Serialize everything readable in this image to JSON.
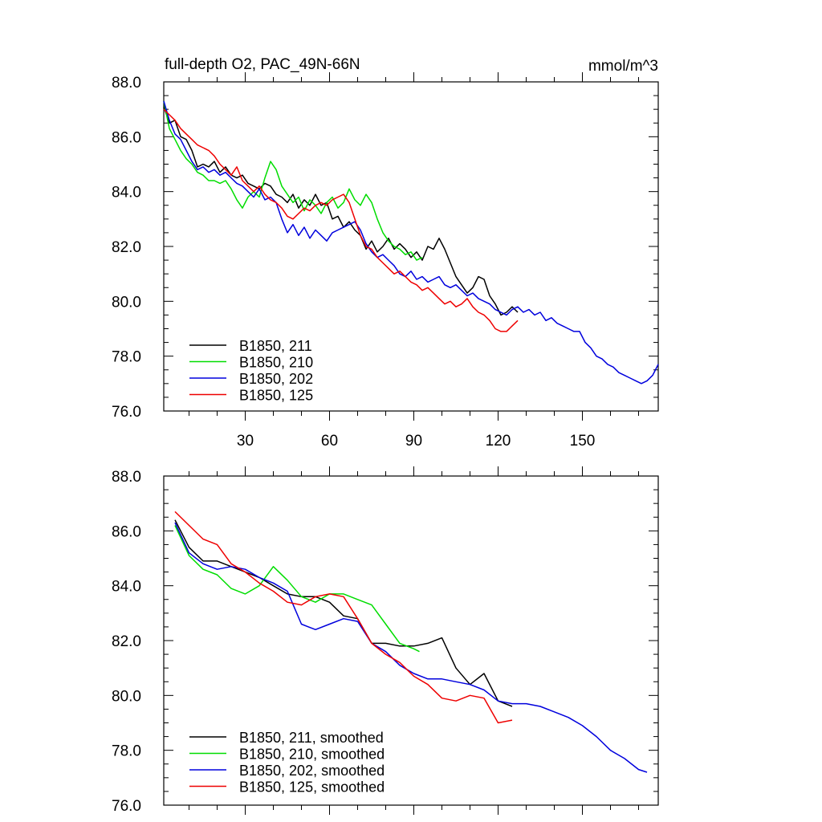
{
  "figure": {
    "title": "full-depth O2, PAC_49N-66N",
    "units": "mmol/m^3"
  },
  "colors": {
    "B1850, 211": "#000000",
    "B1850, 210": "#00dd00",
    "B1850, 202": "#0000dd",
    "B1850, 125": "#ee0000"
  },
  "chart_data": [
    {
      "type": "line",
      "title": "full-depth O2, PAC_49N-66N",
      "ylabel": "mmol/m^3",
      "xlabel": "",
      "xlim": [
        1,
        177
      ],
      "ylim": [
        76,
        88
      ],
      "xticks": [
        30,
        60,
        90,
        120,
        150
      ],
      "xtick_labels": [
        "30",
        "60",
        "90",
        "120",
        "150"
      ],
      "yticks": [
        76,
        78,
        80,
        82,
        84,
        86,
        88
      ],
      "ytick_labels": [
        "76.0",
        "78.0",
        "80.0",
        "82.0",
        "84.0",
        "86.0",
        "88.0"
      ],
      "legend_position": "bottom-left",
      "series": [
        {
          "name": "B1850, 211",
          "legend": "B1850, 211",
          "x": [
            1,
            3,
            5,
            7,
            9,
            11,
            13,
            15,
            17,
            19,
            21,
            23,
            25,
            27,
            29,
            31,
            33,
            35,
            37,
            39,
            41,
            43,
            45,
            47,
            49,
            51,
            53,
            55,
            57,
            59,
            61,
            63,
            65,
            67,
            69,
            71,
            73,
            75,
            77,
            79,
            81,
            83,
            85,
            87,
            89,
            91,
            93,
            95,
            97,
            99,
            101,
            103,
            105,
            107,
            109,
            111,
            113,
            115,
            117,
            119,
            121,
            123,
            125,
            127
          ],
          "values": [
            87.1,
            86.5,
            86.6,
            86.0,
            85.9,
            85.5,
            84.9,
            85.0,
            84.9,
            85.1,
            84.7,
            84.9,
            84.6,
            84.5,
            84.6,
            84.3,
            84.2,
            84.1,
            84.3,
            84.2,
            83.9,
            83.8,
            83.6,
            83.9,
            83.4,
            83.7,
            83.5,
            83.9,
            83.5,
            83.6,
            83.0,
            83.1,
            82.7,
            82.9,
            82.6,
            82.4,
            81.9,
            82.2,
            81.8,
            82.0,
            82.3,
            81.9,
            82.1,
            81.9,
            81.6,
            81.8,
            81.5,
            82.0,
            81.9,
            82.3,
            81.9,
            81.4,
            80.9,
            80.6,
            80.3,
            80.5,
            80.9,
            80.8,
            80.2,
            79.9,
            79.5,
            79.6,
            79.8,
            79.6
          ]
        },
        {
          "name": "B1850, 210",
          "legend": "B1850, 210",
          "x": [
            1,
            3,
            5,
            7,
            9,
            11,
            13,
            15,
            17,
            19,
            21,
            23,
            25,
            27,
            29,
            31,
            33,
            35,
            37,
            39,
            41,
            43,
            45,
            47,
            49,
            51,
            53,
            55,
            57,
            59,
            61,
            63,
            65,
            67,
            69,
            71,
            73,
            75,
            77,
            79,
            81,
            83,
            85,
            87,
            89,
            91,
            93
          ],
          "values": [
            87.3,
            86.3,
            85.9,
            85.5,
            85.2,
            85.0,
            84.7,
            84.6,
            84.4,
            84.4,
            84.3,
            84.4,
            84.1,
            83.7,
            83.4,
            83.8,
            84.0,
            83.8,
            84.5,
            85.1,
            84.8,
            84.2,
            83.9,
            83.6,
            83.8,
            83.3,
            83.7,
            83.5,
            83.2,
            83.6,
            83.8,
            83.4,
            83.6,
            84.1,
            83.7,
            83.5,
            83.9,
            83.6,
            83.0,
            82.5,
            82.2,
            82.0,
            81.9,
            81.7,
            81.8,
            81.5,
            81.6
          ]
        },
        {
          "name": "B1850, 202",
          "legend": "B1850, 202",
          "x": [
            1,
            3,
            5,
            7,
            9,
            11,
            13,
            15,
            17,
            19,
            21,
            23,
            25,
            27,
            29,
            31,
            33,
            35,
            37,
            39,
            41,
            43,
            45,
            47,
            49,
            51,
            53,
            55,
            57,
            59,
            61,
            63,
            65,
            67,
            69,
            71,
            73,
            75,
            77,
            79,
            81,
            83,
            85,
            87,
            89,
            91,
            93,
            95,
            97,
            99,
            101,
            103,
            105,
            107,
            109,
            111,
            113,
            115,
            117,
            119,
            121,
            123,
            125,
            127,
            129,
            131,
            133,
            135,
            137,
            139,
            141,
            143,
            145,
            147,
            149,
            151,
            153,
            155,
            157,
            159,
            161,
            163,
            165,
            167,
            169,
            171,
            173,
            175,
            177
          ],
          "values": [
            87.3,
            86.6,
            86.1,
            85.9,
            85.5,
            85.1,
            84.8,
            84.9,
            84.7,
            84.8,
            84.6,
            84.7,
            84.5,
            84.3,
            84.2,
            84.0,
            83.8,
            84.1,
            83.7,
            83.8,
            83.6,
            83.0,
            82.5,
            82.8,
            82.4,
            82.7,
            82.3,
            82.6,
            82.4,
            82.2,
            82.5,
            82.6,
            82.7,
            82.8,
            82.9,
            82.6,
            82.1,
            81.8,
            81.6,
            81.7,
            81.5,
            81.3,
            81.0,
            80.9,
            81.1,
            80.8,
            80.9,
            80.7,
            80.8,
            80.9,
            80.6,
            80.5,
            80.6,
            80.4,
            80.2,
            80.3,
            80.1,
            80.0,
            79.9,
            79.7,
            79.6,
            79.5,
            79.7,
            79.8,
            79.6,
            79.7,
            79.5,
            79.6,
            79.3,
            79.4,
            79.2,
            79.1,
            79.0,
            78.9,
            78.9,
            78.5,
            78.3,
            78.0,
            77.9,
            77.7,
            77.6,
            77.4,
            77.3,
            77.2,
            77.1,
            77.0,
            77.1,
            77.3,
            77.7
          ]
        },
        {
          "name": "B1850, 125",
          "legend": "B1850, 125",
          "x": [
            1,
            3,
            5,
            7,
            9,
            11,
            13,
            15,
            17,
            19,
            21,
            23,
            25,
            27,
            29,
            31,
            33,
            35,
            37,
            39,
            41,
            43,
            45,
            47,
            49,
            51,
            53,
            55,
            57,
            59,
            61,
            63,
            65,
            67,
            69,
            71,
            73,
            75,
            77,
            79,
            81,
            83,
            85,
            87,
            89,
            91,
            93,
            95,
            97,
            99,
            101,
            103,
            105,
            107,
            109,
            111,
            113,
            115,
            117,
            119,
            121,
            123,
            125,
            127
          ],
          "values": [
            87.0,
            86.8,
            86.6,
            86.3,
            86.1,
            85.9,
            85.7,
            85.6,
            85.5,
            85.3,
            85.0,
            84.8,
            84.6,
            84.9,
            84.4,
            84.2,
            84.0,
            84.2,
            83.9,
            83.7,
            83.6,
            83.4,
            83.1,
            83.0,
            83.2,
            83.4,
            83.3,
            83.5,
            83.6,
            83.5,
            83.7,
            83.8,
            83.9,
            83.6,
            83.0,
            82.4,
            82.0,
            81.9,
            81.6,
            81.4,
            81.2,
            81.0,
            81.1,
            80.9,
            80.7,
            80.6,
            80.4,
            80.5,
            80.3,
            80.1,
            79.9,
            80.0,
            79.8,
            79.9,
            80.1,
            79.8,
            79.6,
            79.5,
            79.3,
            79.0,
            78.9,
            78.9,
            79.1,
            79.3
          ]
        }
      ]
    },
    {
      "type": "line",
      "title": "",
      "xlabel": "",
      "ylabel": "",
      "xlim": [
        1,
        177
      ],
      "ylim": [
        76,
        88
      ],
      "xticks": [
        30,
        60,
        90,
        120,
        150
      ],
      "xtick_labels": [],
      "yticks": [
        76,
        78,
        80,
        82,
        84,
        86,
        88
      ],
      "ytick_labels": [
        "76.0",
        "78.0",
        "80.0",
        "82.0",
        "84.0",
        "86.0",
        "88.0"
      ],
      "legend_position": "bottom-left",
      "series": [
        {
          "name": "B1850, 211",
          "legend": "B1850, 211, smoothed",
          "x": [
            5,
            10,
            15,
            20,
            25,
            30,
            35,
            40,
            45,
            50,
            55,
            60,
            65,
            70,
            75,
            80,
            85,
            90,
            95,
            100,
            105,
            110,
            115,
            120,
            125
          ],
          "values": [
            86.4,
            85.4,
            84.9,
            84.9,
            84.7,
            84.5,
            84.3,
            84.0,
            83.7,
            83.6,
            83.6,
            83.4,
            82.9,
            82.8,
            81.9,
            81.9,
            81.8,
            81.8,
            81.9,
            82.1,
            81.0,
            80.4,
            80.8,
            79.8,
            79.6
          ]
        },
        {
          "name": "B1850, 210",
          "legend": "B1850, 210, smoothed",
          "x": [
            5,
            10,
            15,
            20,
            25,
            30,
            35,
            40,
            45,
            50,
            55,
            60,
            65,
            70,
            75,
            80,
            85,
            90,
            92
          ],
          "values": [
            86.2,
            85.1,
            84.6,
            84.4,
            83.9,
            83.7,
            84.0,
            84.7,
            84.2,
            83.6,
            83.4,
            83.7,
            83.7,
            83.5,
            83.3,
            82.6,
            81.9,
            81.7,
            81.6
          ]
        },
        {
          "name": "B1850, 202",
          "legend": "B1850, 202, smoothed",
          "x": [
            5,
            10,
            15,
            20,
            25,
            30,
            35,
            40,
            45,
            50,
            55,
            60,
            65,
            70,
            75,
            80,
            85,
            90,
            95,
            100,
            105,
            110,
            115,
            120,
            125,
            130,
            135,
            140,
            145,
            150,
            155,
            160,
            165,
            170,
            173
          ],
          "values": [
            86.3,
            85.2,
            84.8,
            84.6,
            84.7,
            84.6,
            84.3,
            84.1,
            83.8,
            82.6,
            82.4,
            82.6,
            82.8,
            82.7,
            81.9,
            81.6,
            81.1,
            80.8,
            80.6,
            80.6,
            80.5,
            80.4,
            80.2,
            79.8,
            79.7,
            79.7,
            79.6,
            79.4,
            79.2,
            78.9,
            78.5,
            78.0,
            77.7,
            77.3,
            77.2
          ]
        },
        {
          "name": "B1850, 125",
          "legend": "B1850, 125, smoothed",
          "x": [
            5,
            10,
            15,
            20,
            25,
            30,
            35,
            40,
            45,
            50,
            55,
            60,
            65,
            70,
            75,
            80,
            85,
            90,
            95,
            100,
            105,
            110,
            115,
            120,
            125
          ],
          "values": [
            86.7,
            86.2,
            85.7,
            85.5,
            84.8,
            84.5,
            84.1,
            83.8,
            83.4,
            83.3,
            83.6,
            83.7,
            83.6,
            82.8,
            81.9,
            81.5,
            81.2,
            80.7,
            80.4,
            79.9,
            79.8,
            80.0,
            79.9,
            79.0,
            79.1
          ]
        }
      ]
    }
  ]
}
